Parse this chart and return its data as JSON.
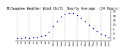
{
  "title": "Milwaukee Weather Wind Chill  Hourly Average  (24 Hours)",
  "title_fontsize": 3.5,
  "hours": [
    0,
    1,
    2,
    3,
    4,
    5,
    6,
    7,
    8,
    9,
    10,
    11,
    12,
    13,
    14,
    15,
    16,
    17,
    18,
    19,
    20,
    21,
    22,
    23
  ],
  "wind_chill": [
    -5,
    -5,
    -4,
    -5,
    -4,
    -4,
    -3,
    -2,
    2,
    8,
    14,
    19,
    22,
    23,
    23,
    21,
    18,
    14,
    10,
    6,
    3,
    0,
    -2,
    -4
  ],
  "dot_color": "#0000cc",
  "dot_size": 1.5,
  "bg_color": "#ffffff",
  "grid_color": "#888888",
  "ylim": [
    -8,
    26
  ],
  "yticks": [
    -5,
    0,
    5,
    10,
    15,
    20,
    25
  ],
  "ytick_labels": [
    "-5",
    "0",
    "5",
    "10",
    "15",
    "20",
    "25"
  ],
  "ylabel_fontsize": 3.0,
  "tick_fontsize": 2.8
}
